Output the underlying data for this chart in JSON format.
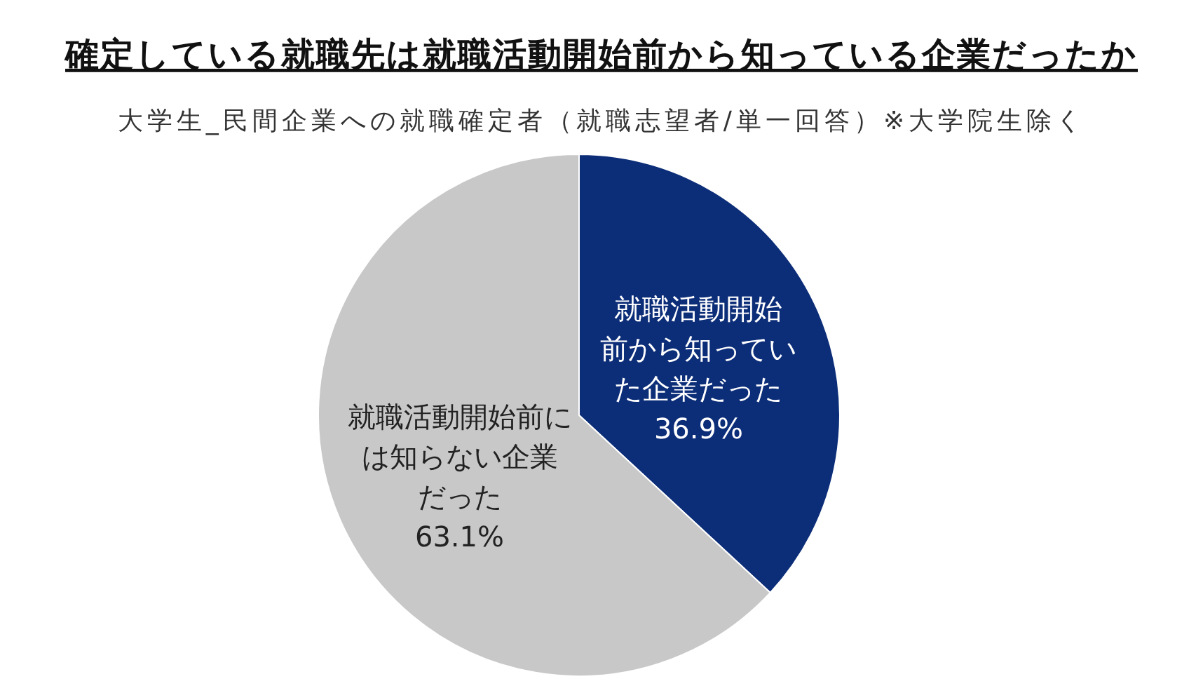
{
  "chart_data": {
    "type": "pie",
    "title": "確定している就職先は就職活動開始前から知っている企業だったか",
    "subtitle": "大学生_民間企業への就職確定者（就職志望者/単一回答）※大学院生除く",
    "categories": [
      "就職活動開始前から知っていた企業だった",
      "就職活動開始前には知らない企業だった"
    ],
    "values": [
      36.9,
      63.1
    ],
    "colors": [
      "#0c2d78",
      "#c8c8c8"
    ],
    "value_labels": [
      "36.9%",
      "63.1%"
    ]
  }
}
